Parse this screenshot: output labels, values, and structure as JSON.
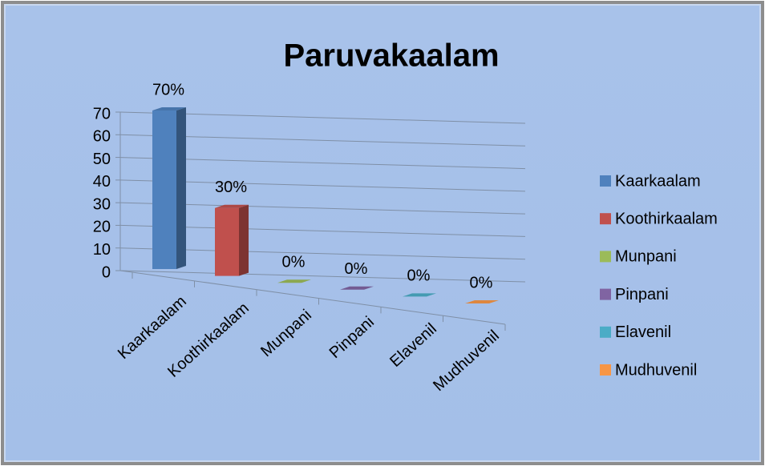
{
  "chart_data": {
    "type": "bar",
    "title": "Paruvakaalam",
    "categories": [
      "Kaarkaalam",
      "Koothirkaalam",
      "Munpani",
      "Pinpani",
      "Elavenil",
      "Mudhuvenil"
    ],
    "values": [
      70,
      30,
      0,
      0,
      0,
      0
    ],
    "value_labels": [
      "70%",
      "30%",
      "0%",
      "0%",
      "0%",
      "0%"
    ],
    "colors": [
      "#4f81bd",
      "#c0504d",
      "#9bbb59",
      "#8064a2",
      "#4bacc6",
      "#f79646"
    ],
    "ylim": [
      0,
      70
    ],
    "yticks": [
      0,
      10,
      20,
      30,
      40,
      50,
      60,
      70
    ],
    "grid": true,
    "legend": "right"
  }
}
